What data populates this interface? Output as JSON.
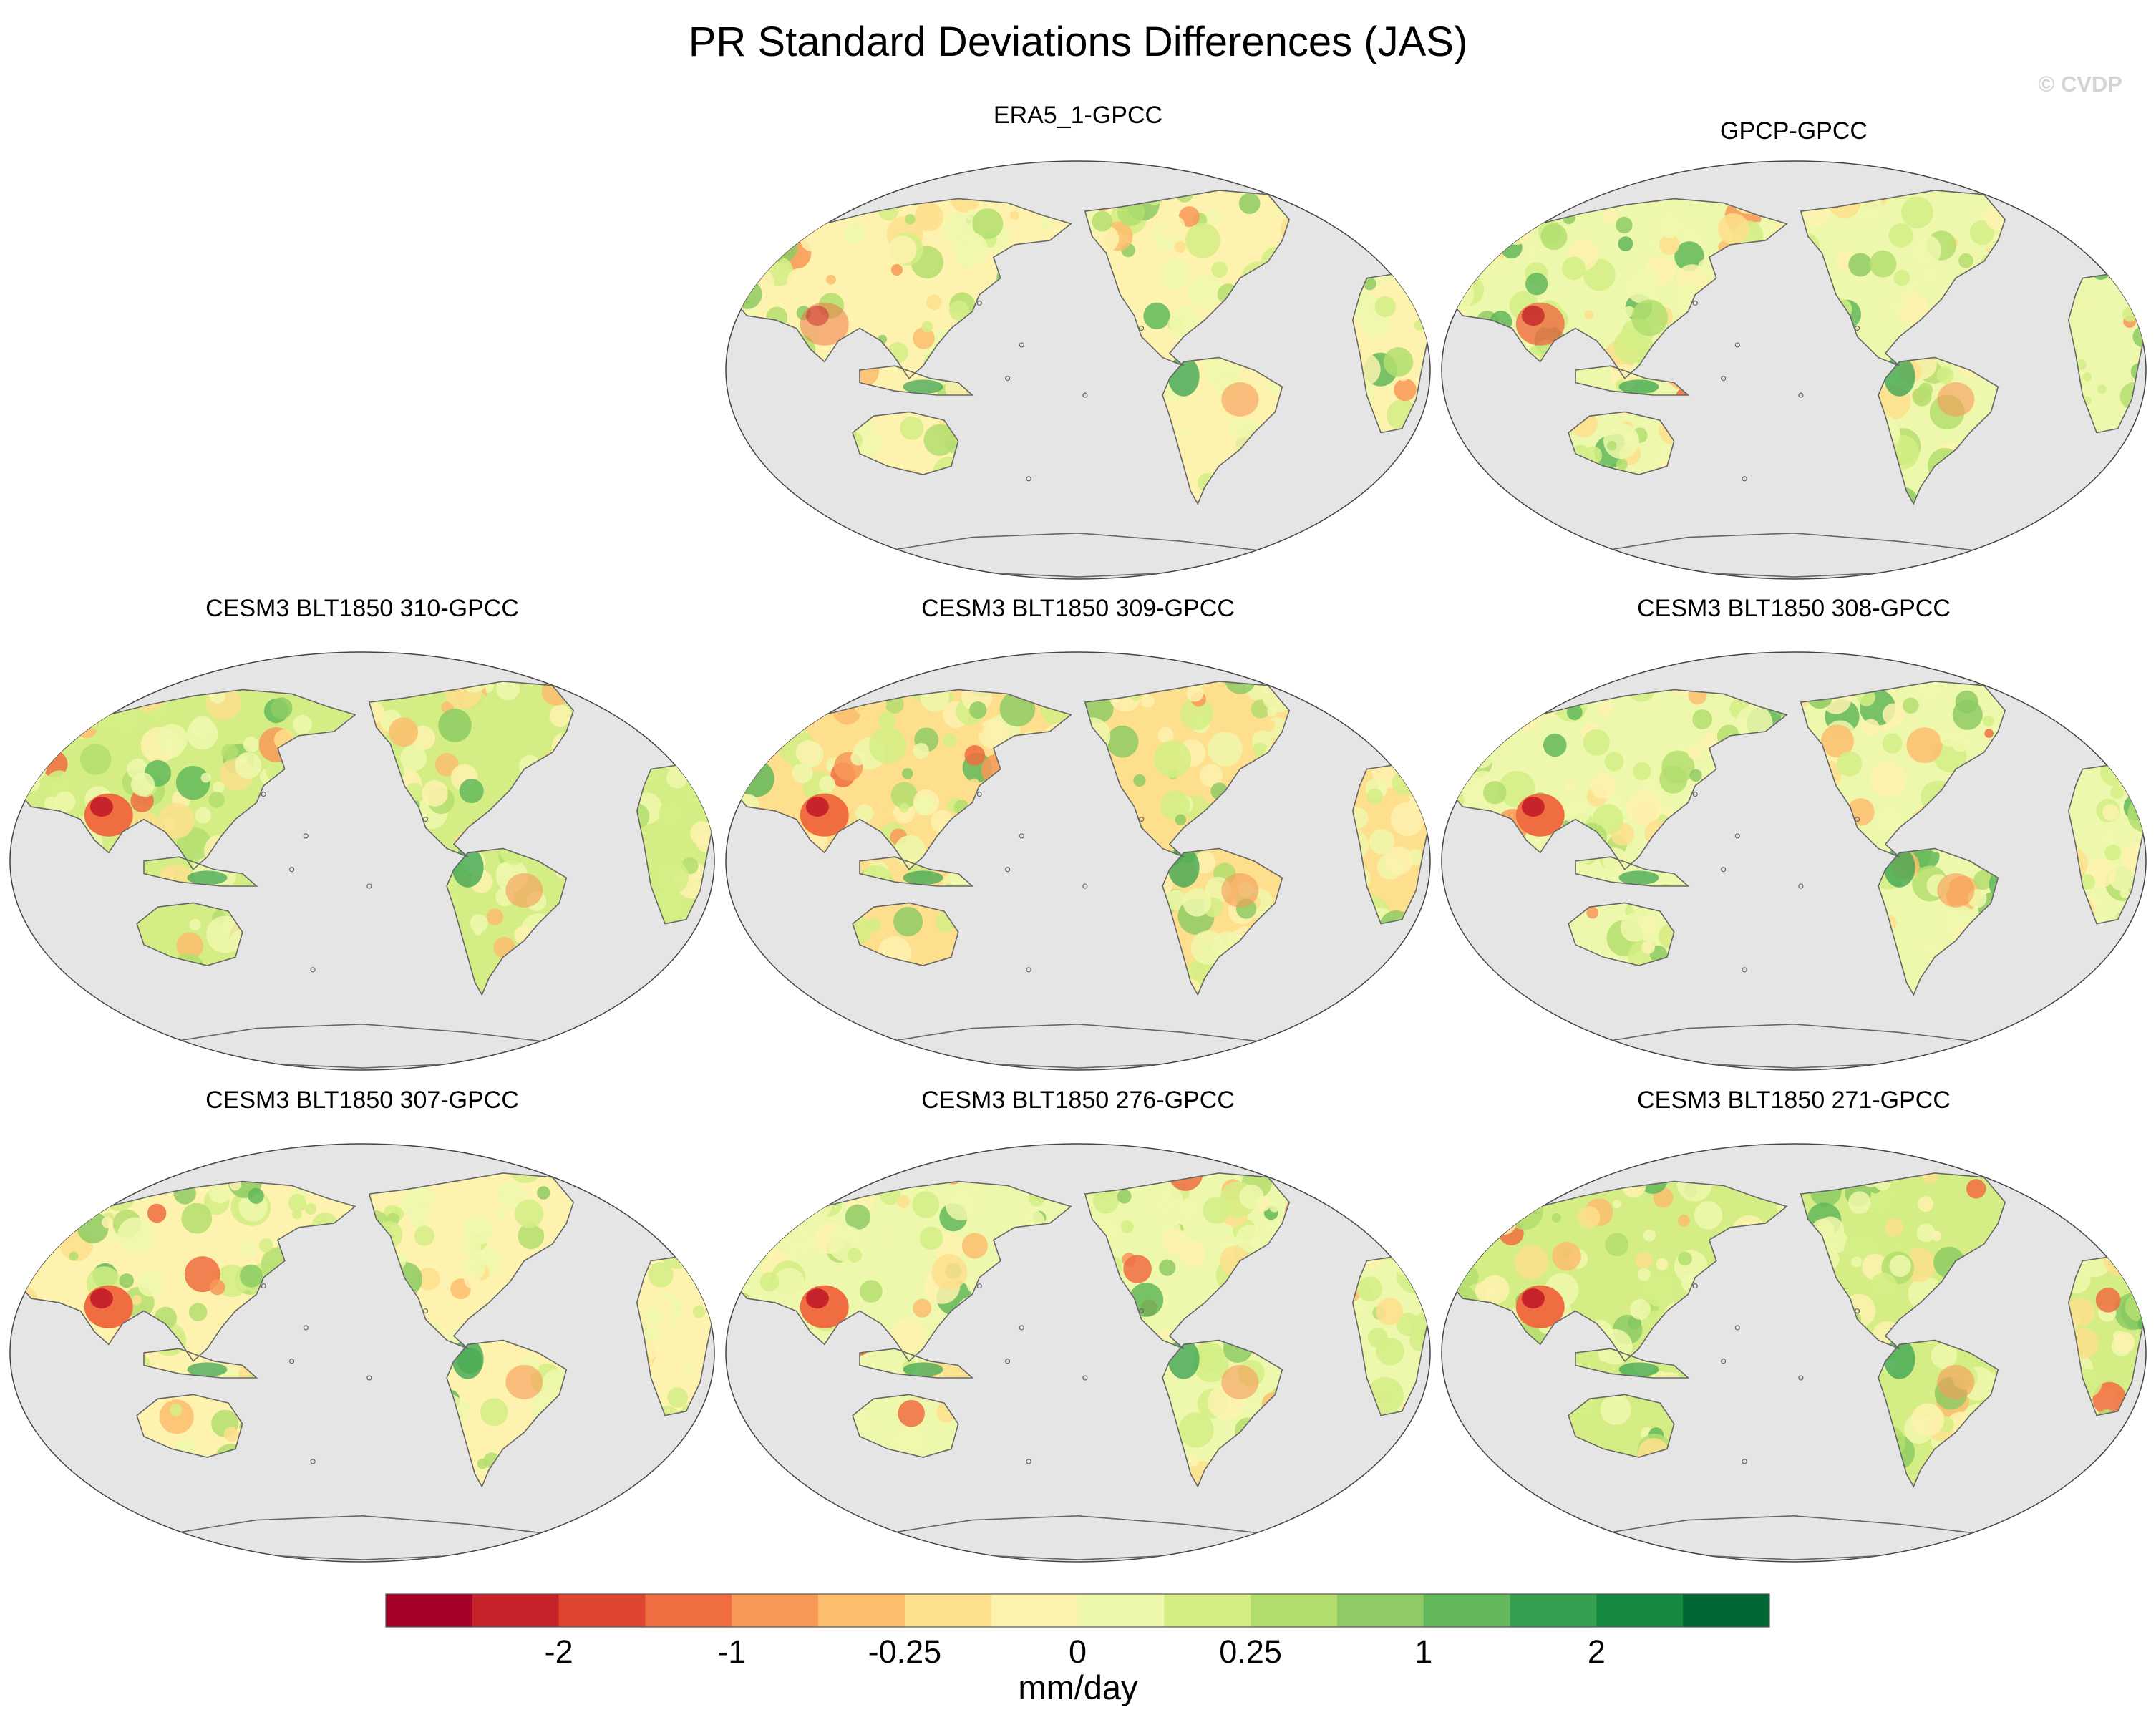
{
  "figure": {
    "title": "PR Standard Deviations Differences (JAS)",
    "watermark": "© CVDP"
  },
  "chart_data": {
    "type": "heatmap",
    "projection": "Robinson-like, Pacific-centered",
    "variable": "precipitation standard deviation difference",
    "season": "JAS",
    "panels": [
      {
        "name": "era5-gpcc",
        "title": "ERA5_1-GPCC"
      },
      {
        "name": "gpcp-gpcc",
        "title": "GPCP-GPCC"
      },
      {
        "name": "cesm3-310",
        "title": "CESM3 BLT1850 310-GPCC"
      },
      {
        "name": "cesm3-309",
        "title": "CESM3 BLT1850 309-GPCC"
      },
      {
        "name": "cesm3-308",
        "title": "CESM3 BLT1850 308-GPCC"
      },
      {
        "name": "cesm3-307",
        "title": "CESM3 BLT1850 307-GPCC"
      },
      {
        "name": "cesm3-276",
        "title": "CESM3 BLT1850 276-GPCC"
      },
      {
        "name": "cesm3-271",
        "title": "CESM3 BLT1850 271-GPCC"
      }
    ],
    "colorbar": {
      "units": "mm/day",
      "colors": [
        "#a50026",
        "#c6232a",
        "#df4631",
        "#f06d42",
        "#f89958",
        "#fcbd6d",
        "#fddf8d",
        "#fdf2ae",
        "#eef8ac",
        "#d4ee85",
        "#b3de6e",
        "#8ecb64",
        "#62b85b",
        "#35a150",
        "#14893f",
        "#006633"
      ],
      "tick_labels": [
        "-2",
        "-1",
        "-0.25",
        "0",
        "0.25",
        "1",
        "2"
      ],
      "tick_boundary_index": [
        2,
        4,
        6,
        8,
        10,
        12,
        14
      ]
    },
    "ocean_color": "#e5e5e5"
  }
}
